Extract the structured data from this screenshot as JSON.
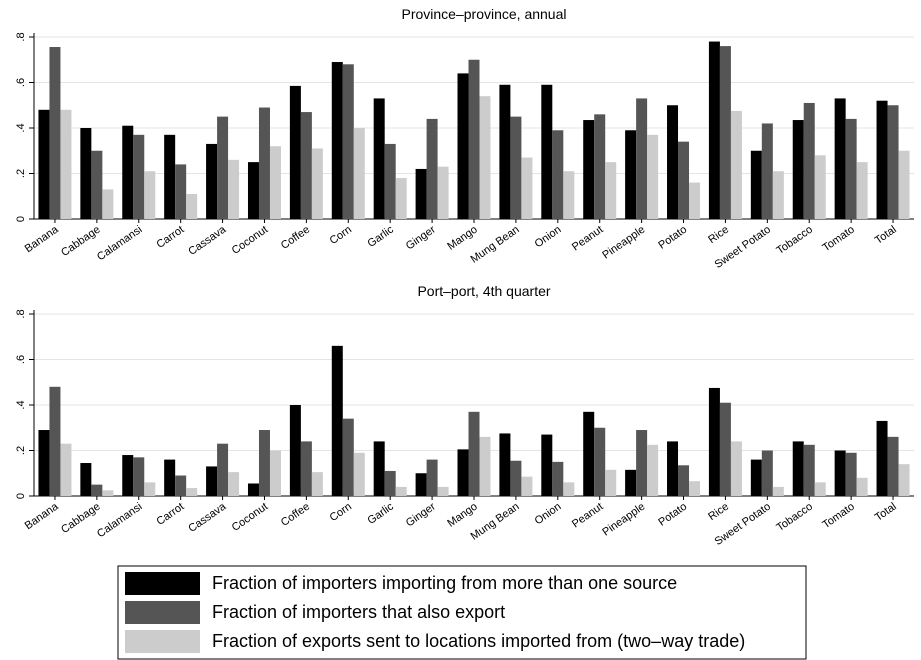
{
  "chart_data": [
    {
      "type": "bar",
      "title": "Province–province, annual",
      "categories": [
        "Banana",
        "Cabbage",
        "Calamansi",
        "Carrot",
        "Cassava",
        "Coconut",
        "Coffee",
        "Corn",
        "Garlic",
        "Ginger",
        "Mango",
        "Mung Bean",
        "Onion",
        "Peanut",
        "Pineapple",
        "Potato",
        "Rice",
        "Sweet Potato",
        "Tobacco",
        "Tomato",
        "Total"
      ],
      "series": [
        {
          "name": "Fraction of importers importing from more than one source",
          "color": "#000000",
          "values": [
            0.48,
            0.4,
            0.41,
            0.37,
            0.33,
            0.25,
            0.585,
            0.69,
            0.53,
            0.22,
            0.64,
            0.59,
            0.59,
            0.435,
            0.39,
            0.5,
            0.78,
            0.3,
            0.435,
            0.53,
            0.52
          ]
        },
        {
          "name": "Fraction of importers that also export",
          "color": "#555555",
          "values": [
            0.756,
            0.3,
            0.37,
            0.24,
            0.45,
            0.49,
            0.47,
            0.68,
            0.33,
            0.44,
            0.7,
            0.45,
            0.39,
            0.46,
            0.53,
            0.34,
            0.76,
            0.42,
            0.51,
            0.44,
            0.5
          ]
        },
        {
          "name": "Fraction of exports sent to locations imported from (two–way trade)",
          "color": "#cccccc",
          "values": [
            0.48,
            0.13,
            0.21,
            0.11,
            0.26,
            0.32,
            0.31,
            0.4,
            0.18,
            0.23,
            0.54,
            0.27,
            0.21,
            0.25,
            0.37,
            0.16,
            0.475,
            0.21,
            0.28,
            0.25,
            0.3
          ]
        }
      ],
      "ylim": [
        0,
        0.8
      ],
      "yticks": [
        0,
        {
          "value": 0.2,
          "label": ".2"
        },
        {
          "value": 0.4,
          "label": ".4"
        },
        {
          "value": 0.6,
          "label": ".6"
        },
        {
          "value": 0.8,
          "label": ".8"
        }
      ],
      "grid": true
    },
    {
      "type": "bar",
      "title": "Port–port, 4th quarter",
      "categories": [
        "Banana",
        "Cabbage",
        "Calamansi",
        "Carrot",
        "Cassava",
        "Coconut",
        "Coffee",
        "Corn",
        "Garlic",
        "Ginger",
        "Mango",
        "Mung Bean",
        "Onion",
        "Peanut",
        "Pineapple",
        "Potato",
        "Rice",
        "Sweet Potato",
        "Tobacco",
        "Tomato",
        "Total"
      ],
      "series": [
        {
          "color": "#000000",
          "values": [
            0.29,
            0.145,
            0.18,
            0.16,
            0.13,
            0.055,
            0.4,
            0.66,
            0.24,
            0.1,
            0.205,
            0.275,
            0.27,
            0.37,
            0.115,
            0.24,
            0.475,
            0.16,
            0.24,
            0.2,
            0.33
          ]
        },
        {
          "color": "#555555",
          "values": [
            0.48,
            0.05,
            0.17,
            0.09,
            0.23,
            0.29,
            0.24,
            0.34,
            0.11,
            0.16,
            0.37,
            0.155,
            0.15,
            0.3,
            0.29,
            0.135,
            0.41,
            0.2,
            0.225,
            0.19,
            0.26
          ]
        },
        {
          "color": "#cccccc",
          "values": [
            0.23,
            0.025,
            0.06,
            0.035,
            0.105,
            0.2,
            0.105,
            0.19,
            0.04,
            0.04,
            0.26,
            0.085,
            0.06,
            0.115,
            0.225,
            0.065,
            0.24,
            0.04,
            0.06,
            0.08,
            0.14
          ]
        }
      ],
      "ylim": [
        0,
        0.8
      ],
      "yticks": [
        0,
        {
          "value": 0.2,
          "label": ".2"
        },
        {
          "value": 0.4,
          "label": ".4"
        },
        {
          "value": 0.6,
          "label": ".6"
        },
        {
          "value": 0.8,
          "label": ".8"
        }
      ],
      "grid": true
    }
  ]
}
